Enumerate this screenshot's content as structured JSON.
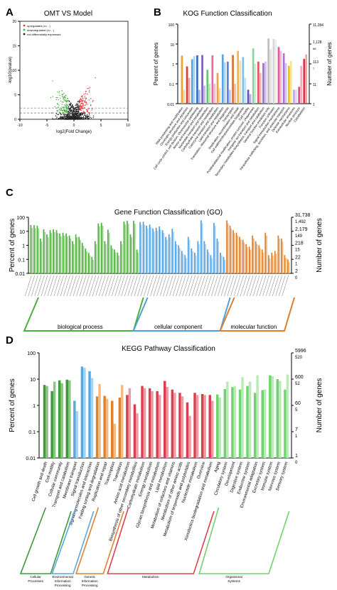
{
  "panels": {
    "A": {
      "letter": "A",
      "title": "OMT VS Model"
    },
    "B": {
      "letter": "B",
      "title": "KOG Function Classification"
    },
    "C": {
      "letter": "C",
      "title": "Gene Function Classification (GO)"
    },
    "D": {
      "letter": "D",
      "title": "KEGG Pathway Classification"
    }
  },
  "chart_data": [
    {
      "id": "volcano",
      "type": "scatter",
      "title": "OMT VS Model",
      "xlabel": "log2(Fold Change)",
      "ylabel": "-log10(pvalue)",
      "xticks": [
        "-10",
        "-5",
        "0",
        "5",
        "10"
      ],
      "yticks": [
        "0",
        "5",
        "10",
        "15",
        "20"
      ],
      "xlim": [
        -10,
        10
      ],
      "ylim": [
        0,
        20
      ],
      "legend": [
        "upregulated (n=...)",
        "downregulated (n=...)",
        "not differentially expressed"
      ],
      "colors": {
        "up": "#e0353a",
        "down": "#3fae3a",
        "ns": "#222222"
      },
      "threshold_y": 1.3
    },
    {
      "id": "kog",
      "type": "bar",
      "title": "KOG Function Classification",
      "ylabel": "Percent of genes",
      "y2label": "Number of genes",
      "yscale": "log",
      "ylim": [
        0.01,
        100
      ],
      "yticks": [
        "100",
        "10",
        "1",
        "0.1",
        "0.01"
      ],
      "y2ticks": [
        [
          "11,284"
        ],
        [
          "1,128",
          "68"
        ],
        [
          "113",
          "7"
        ],
        [
          "11"
        ],
        [
          "1"
        ]
      ],
      "categories": [
        "RNA processing and modification",
        "Chromatin structure and dynamics",
        "Energy production and conversion",
        "Cell cycle control, cell division, chromosome partitioning",
        "Amino acid transport and metabolism",
        "Nucleotide transport and metabolism",
        "Carbohydrate transport and metabolism",
        "Coenzyme transport and metabolism",
        "Lipid transport and metabolism",
        "Translation, ribosomal structure and biogenesis",
        "Transcription",
        "Replication, recombination and repair",
        "Cell wall/membrane/envelope biogenesis",
        "Cell motility",
        "Posttranslational modification, protein turnover, chaperones",
        "Inorganic ion transport and metabolism",
        "Secondary metabolites biosynthesis, transport and catabolism",
        "General function prediction only",
        "Function unknown",
        "Signal transduction mechanisms",
        "Intracellular trafficking, secretion, and vesicular transport",
        "Defense mechanisms",
        "Extracellular structures",
        "Nuclear structure",
        "Cytoskeleton"
      ],
      "series": [
        {
          "values": [
            2.6,
            0.75,
            1.7,
            2.7,
            2.8,
            0.5,
            2.7,
            0.35,
            3.0,
            1.3,
            2.8,
            4.5,
            2.2,
            0.05,
            6.0,
            1.3,
            1.1,
            19.0,
            18.0,
            7.0,
            3.4,
            0.8,
            0.05,
            0.07,
            1.8
          ]
        },
        {
          "values": [
            0.05,
            0.2,
            2.5,
            0.05,
            0.08,
            0.1,
            0.1,
            0.06,
            1.2,
            0.05,
            0.1,
            1.5,
            0.2,
            0.03,
            1.0,
            0.35,
            1.3,
            5.5,
            16.0,
            4.5,
            1.1,
            1.4,
            0.05,
            0.8,
            3.0
          ]
        }
      ],
      "colors": [
        "#f2a12d",
        "#d6403a",
        "#55a7de",
        "#3a69c4",
        "#7a5ed2",
        "#6cc36a",
        "#e86aa0",
        "#f0a040",
        "#59a4e6",
        "#5e80d6",
        "#d9732f",
        "#f0b64a",
        "#7fbfe8",
        "#6b4fbb",
        "#8fd1a1",
        "#e05858",
        "#9b71d8",
        "#bfbfbf",
        "#d6d6d6",
        "#e6589c",
        "#a574d6",
        "#f0c400",
        "#c5a3e8",
        "#e34c7a",
        "#d9363e"
      ]
    },
    {
      "id": "go",
      "type": "bar",
      "title": "Gene Function Classification (GO)",
      "ylabel": "Percent of genes",
      "y2label": "Number of genes",
      "yscale": "log",
      "ylim": [
        0.01,
        100
      ],
      "yticks": [
        "100",
        "10",
        "1",
        "0.1",
        "0.01"
      ],
      "y2ticks": [
        [
          "31,738",
          "1,492"
        ],
        [
          "2,179",
          "149"
        ],
        [
          "218",
          "15"
        ],
        [
          "22",
          "1"
        ],
        [
          "2",
          "0"
        ]
      ],
      "groups": [
        {
          "name": "biological process",
          "color": "#4caf3f",
          "light": "#9fd38f",
          "values": [
            28,
            27,
            25,
            3,
            14,
            6,
            12,
            14,
            12,
            7,
            8,
            7,
            5,
            2,
            6,
            4,
            1.5,
            0.6,
            0.3,
            0.15,
            2,
            36,
            40,
            2,
            13,
            1,
            0.5,
            0.3,
            2,
            50,
            55,
            6,
            55,
            0.5
          ]
        },
        {
          "name": "cellular component",
          "color": "#4f9fdd",
          "light": "#a9d1f1",
          "values": [
            45,
            48,
            25,
            30,
            16,
            18,
            22,
            12,
            4,
            6,
            15,
            2,
            1,
            0.4,
            0.2,
            4,
            0.6,
            0.3,
            2,
            60,
            2,
            0.5,
            0.2,
            40,
            3,
            0.3,
            0.15
          ]
        },
        {
          "name": "molecular function",
          "color": "#dd7d2e",
          "light": "#f2b97f",
          "values": [
            60,
            25,
            12,
            8,
            4,
            2.5,
            1.2,
            0.8,
            5,
            2,
            1,
            0.5,
            8,
            0.2,
            0.3,
            0.4,
            5,
            3,
            0.2,
            0.1
          ]
        }
      ]
    },
    {
      "id": "kegg",
      "type": "bar",
      "title": "KEGG Pathway Classification",
      "ylabel": "Percent of genes",
      "y2label": "Number of genes",
      "yscale": "log",
      "ylim": [
        0.01,
        100
      ],
      "yticks": [
        "100",
        "10",
        "1",
        "0.1",
        "0.01"
      ],
      "y2ticks": [
        [
          "5996",
          "520"
        ],
        [
          "600",
          "52"
        ],
        [
          "60",
          "5"
        ],
        [
          "7",
          "1"
        ],
        [
          "1",
          "0"
        ]
      ],
      "categories": [
        "Cell growth and death",
        "Cell motility",
        "Cellular community",
        "Transport and catabolism",
        "Membrane transport",
        "Signal transduction",
        "Signaling molecules and interaction",
        "Folding sorting and degradation",
        "Replication and repair",
        "Transcription",
        "Translation",
        "Amino acid metabolism",
        "Biosynthesis of other secondary metabolites",
        "Carbohydrate metabolism",
        "Energy metabolism",
        "Glycan biosynthesis and metabolism",
        "Lipid metabolism",
        "Metabolism of cofactors and vitamins",
        "Metabolism of other amino acids",
        "Metabolism of terpenoids and polyketides",
        "Nucleotide metabolism",
        "Overview",
        "Xenobiotics biodegradation and metabolism",
        "Aging",
        "Circulatory system",
        "Development",
        "Digestive system",
        "Endocrine system",
        "Environmental adaptation",
        "Excretory system",
        "Immune system",
        "Nervous system",
        "Sensory system"
      ],
      "groups": [
        {
          "name": "Cellular Processes",
          "color": "#3d9a3d",
          "light": "#86c97d",
          "count": 4
        },
        {
          "name": "Environmental Information Processing",
          "color": "#59a8e0",
          "light": "#a8d4f3",
          "count": 3
        },
        {
          "name": "Genetic Information Processing",
          "color": "#e0812f",
          "light": "#f2bb84",
          "count": 4
        },
        {
          "name": "Metabolism",
          "color": "#d9404f",
          "light": "#f09aa5",
          "count": 12
        },
        {
          "name": "Organismal Systems",
          "color": "#6fd36f",
          "light": "#b9ecb5",
          "count": 10
        }
      ],
      "series": [
        {
          "values": [
            6.0,
            3.5,
            9.0,
            9.5,
            1.5,
            30.0,
            20.0,
            2.2,
            2.3,
            1.5,
            2.0,
            2.5,
            1.1,
            5.5,
            4.5,
            3.5,
            8.5,
            4.0,
            3.0,
            1.3,
            3.0,
            2.7,
            2.5,
            2.6,
            4.2,
            5.0,
            4.0,
            5.5,
            3.0,
            3.8,
            14.0,
            10.0,
            4.0
          ]
        },
        {
          "values": [
            5.5,
            8.0,
            7.0,
            9.0,
            0.6,
            27.0,
            11.0,
            6.5,
            1.8,
            0.2,
            6.0,
            4.5,
            0.5,
            4.5,
            3.5,
            2.5,
            5.0,
            3.0,
            2.2,
            0.4,
            2.5,
            2.5,
            1.5,
            2.0,
            8.0,
            5.5,
            12.0,
            8.0,
            14.0,
            4.0,
            13.0,
            8.5,
            15.0
          ]
        }
      ]
    }
  ]
}
